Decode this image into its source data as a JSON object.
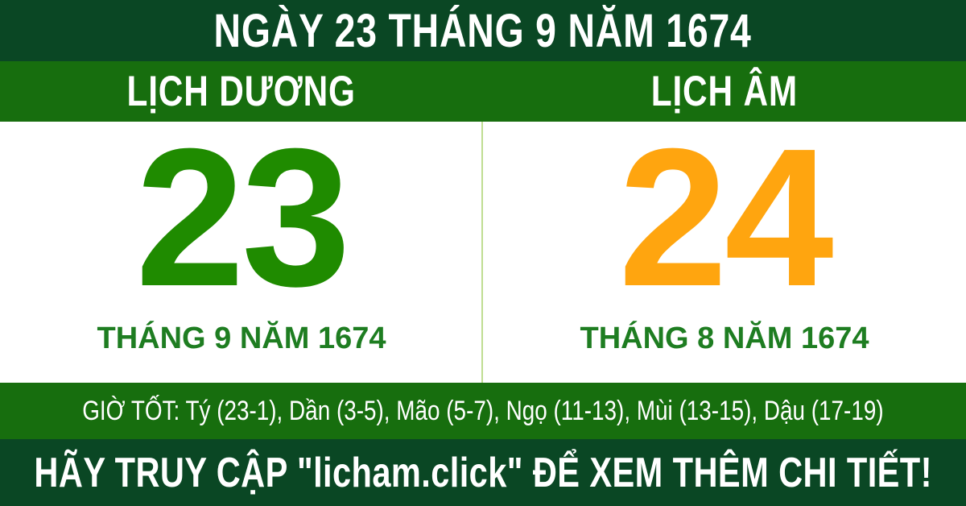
{
  "header": {
    "title": "NGÀY 23 THÁNG 9 NĂM 1674"
  },
  "labels": {
    "solar": "LỊCH DƯƠNG",
    "lunar": "LỊCH ÂM"
  },
  "solar": {
    "day": "23",
    "month_year": "THÁNG 9 NĂM 1674"
  },
  "lunar": {
    "day": "24",
    "month_year": "THÁNG 8 NĂM 1674"
  },
  "good_hours": "GIỜ TỐT: Tý (23-1), Dần (3-5), Mão (5-7), Ngọ (11-13), Mùi (13-15), Dậu (17-19)",
  "footer": {
    "cta": "HÃY TRUY CẬP \"licham.click\" ĐỂ XEM THÊM CHI TIẾT!"
  },
  "colors": {
    "dark_green": "#0a4724",
    "medium_green": "#176e0e",
    "solar_day": "#1f8b00",
    "lunar_day": "#ffa50f",
    "month_green": "#1e7d21",
    "divider": "#bfdd92",
    "white": "#ffffff"
  }
}
